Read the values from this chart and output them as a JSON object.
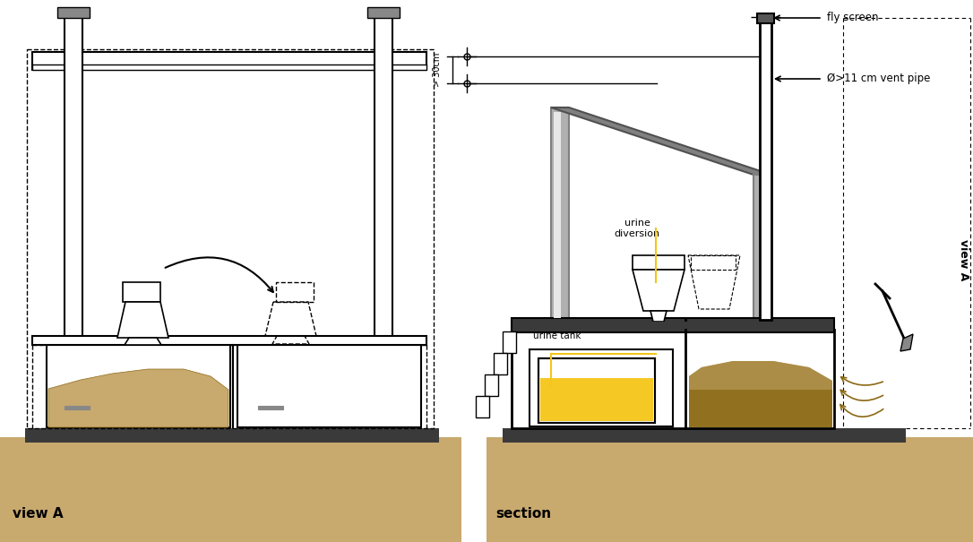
{
  "bg_color": "#ffffff",
  "ground_color": "#c8a96e",
  "concrete_color": "#3a3a3a",
  "sand_color": "#c8a96e",
  "sand_dark": "#8B6914",
  "yellow_color": "#f5c518",
  "gray_color": "#808080",
  "gray_light": "#b0b0b0",
  "title_left": "view A",
  "title_right": "section",
  "label_fly": "fly screen",
  "label_vent": "Ø>11 cm vent pipe",
  "label_urine_div": "urine\ndiversion",
  "label_urine_tank": "urine tank",
  "label_view_a": "view A",
  "label_30cm": "> 30cm"
}
